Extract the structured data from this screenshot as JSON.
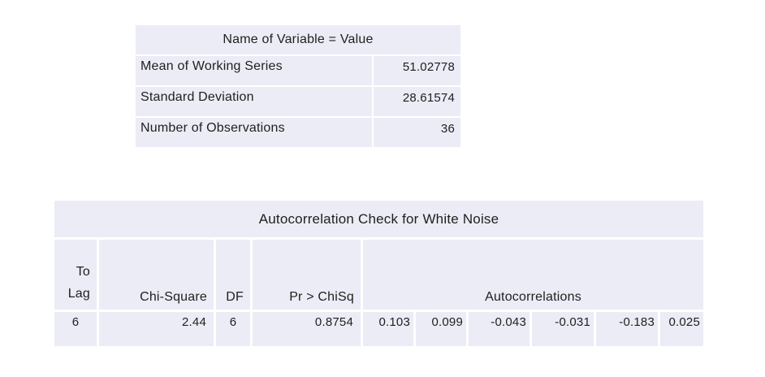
{
  "colors": {
    "cell_bg": "#ebecf5",
    "text": "#1f1f1f",
    "page_bg": "#ffffff"
  },
  "summary_table": {
    "title": "Name of Variable = Value",
    "rows": [
      {
        "label": "Mean of Working Series",
        "value": "51.02778"
      },
      {
        "label": "Standard Deviation",
        "value": "28.61574"
      },
      {
        "label": "Number of Observations",
        "value": "36"
      }
    ]
  },
  "white_noise_table": {
    "title": "Autocorrelation Check for White Noise",
    "columns": {
      "to_lag_line1": "To",
      "to_lag_line2": "Lag",
      "chi_square": "Chi-Square",
      "df": "DF",
      "pr_chisq": "Pr > ChiSq",
      "autocorrelations": "Autocorrelations"
    },
    "data_row": {
      "to_lag": "6",
      "chi_square": "2.44",
      "df": "6",
      "pr_chisq": "0.8754",
      "autocorrelations": [
        "0.103",
        "0.099",
        "-0.043",
        "-0.031",
        "-0.183",
        "0.025"
      ]
    }
  },
  "chart_data": {
    "type": "table",
    "tables": [
      {
        "title": "Name of Variable = Value",
        "rows": [
          [
            "Mean of Working Series",
            51.02778
          ],
          [
            "Standard Deviation",
            28.61574
          ],
          [
            "Number of Observations",
            36
          ]
        ]
      },
      {
        "title": "Autocorrelation Check for White Noise",
        "columns": [
          "To Lag",
          "Chi-Square",
          "DF",
          "Pr > ChiSq",
          "Autocorrelations"
        ],
        "rows": [
          {
            "to_lag": 6,
            "chi_square": 2.44,
            "df": 6,
            "pr_chisq": 0.8754,
            "autocorrelations": [
              0.103,
              0.099,
              -0.043,
              -0.031,
              -0.183,
              0.025
            ]
          }
        ]
      }
    ]
  }
}
